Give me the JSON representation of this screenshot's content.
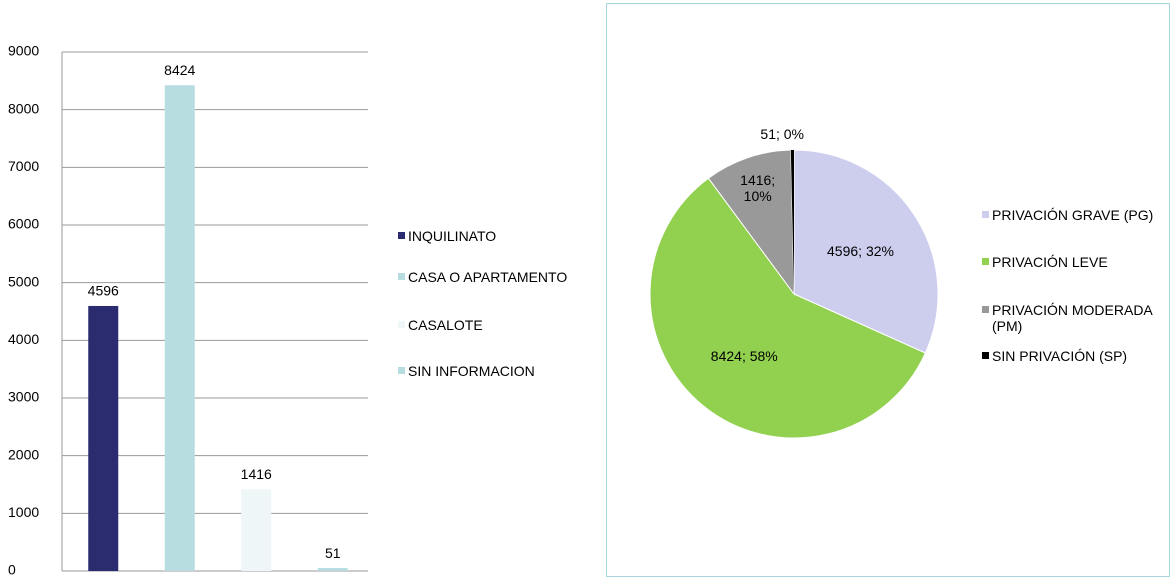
{
  "chart_data": [
    {
      "type": "bar",
      "categories": [
        "INQUILINATO",
        "CASA O APARTAMENTO",
        "CASALOTE",
        "SIN INFORMACION"
      ],
      "values": [
        4596,
        8424,
        1416,
        51
      ],
      "colors": [
        "#2b2b6f",
        "#b7dde1",
        "#eef6f7",
        "#b7dde1"
      ],
      "ylim": [
        0,
        9000
      ],
      "yticks": [
        0,
        1000,
        2000,
        3000,
        4000,
        5000,
        6000,
        7000,
        8000,
        9000
      ],
      "grid": true,
      "legend": "right"
    },
    {
      "type": "pie",
      "categories": [
        "PRIVACIÓN GRAVE (PG)",
        "PRIVACIÓN LEVE",
        "PRIVACIÓN MODERADA (PM)",
        "SIN PRIVACIÓN (SP)"
      ],
      "values": [
        4596,
        8424,
        1416,
        51
      ],
      "value_labels": [
        "4596; 32%",
        "8424; 58%",
        "1416; 10%",
        "51; 0%"
      ],
      "colors": [
        "#cdcdee",
        "#92d050",
        "#999999",
        "#000000"
      ],
      "legend": "right"
    }
  ]
}
